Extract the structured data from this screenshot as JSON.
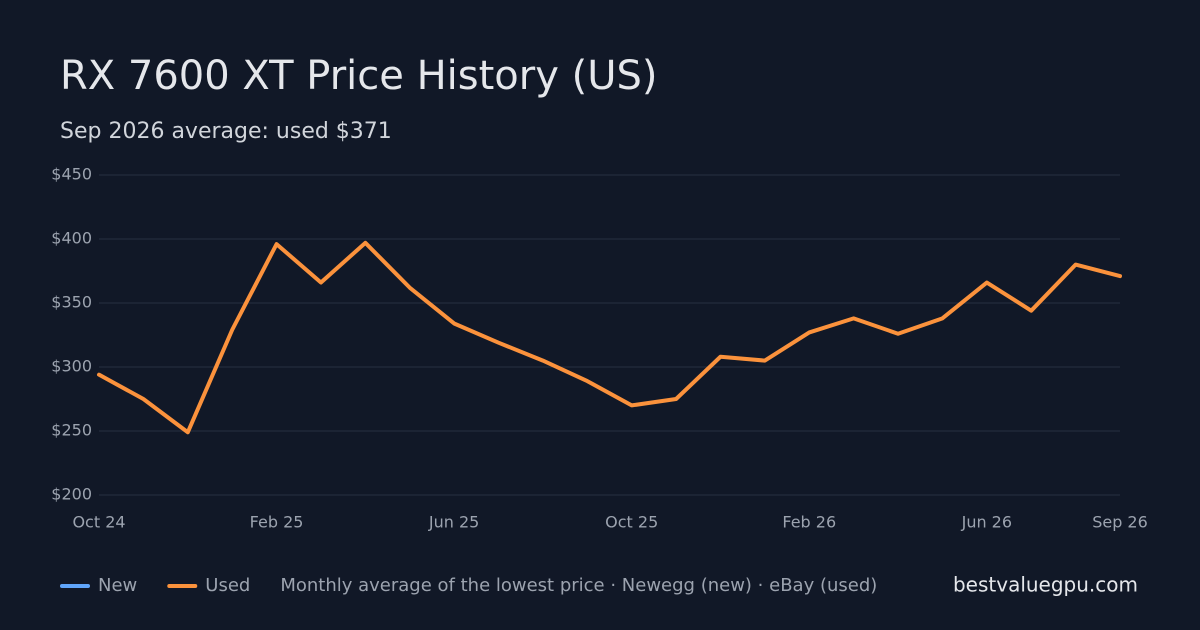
{
  "chart_data": {
    "type": "line",
    "title": "RX 7600 XT Price History (US)",
    "subtitle": "Sep 2026 average: used $371",
    "categories": [
      "Oct 24",
      null,
      null,
      null,
      "Feb 25",
      null,
      null,
      null,
      "Jun 25",
      null,
      null,
      null,
      "Oct 25",
      null,
      null,
      null,
      "Feb 26",
      null,
      null,
      null,
      "Jun 26",
      null,
      null,
      "Sep 26"
    ],
    "series": [
      {
        "name": "New",
        "color": "#60a5fa",
        "values": [
          null,
          null,
          null,
          null,
          null,
          null,
          null,
          null,
          null,
          null,
          null,
          null,
          null,
          null,
          null,
          null,
          null,
          null,
          null,
          null,
          null,
          null,
          null,
          null
        ]
      },
      {
        "name": "Used",
        "color": "#fb923c",
        "values": [
          294,
          275,
          249,
          329,
          396,
          366,
          397,
          362,
          334,
          319,
          305,
          289,
          270,
          275,
          308,
          305,
          327,
          338,
          326,
          338,
          366,
          344,
          380,
          371
        ]
      }
    ],
    "ylim": [
      200,
      450
    ],
    "yticks": [
      {
        "value": 200,
        "label": "$200"
      },
      {
        "value": 250,
        "label": "$250"
      },
      {
        "value": 300,
        "label": "$300"
      },
      {
        "value": 350,
        "label": "$350"
      },
      {
        "value": 400,
        "label": "$400"
      },
      {
        "value": 450,
        "label": "$450"
      }
    ],
    "grid": true,
    "note": "Monthly average of the lowest price · Newegg (new) · eBay (used)",
    "brand": "bestvaluegpu.com"
  }
}
